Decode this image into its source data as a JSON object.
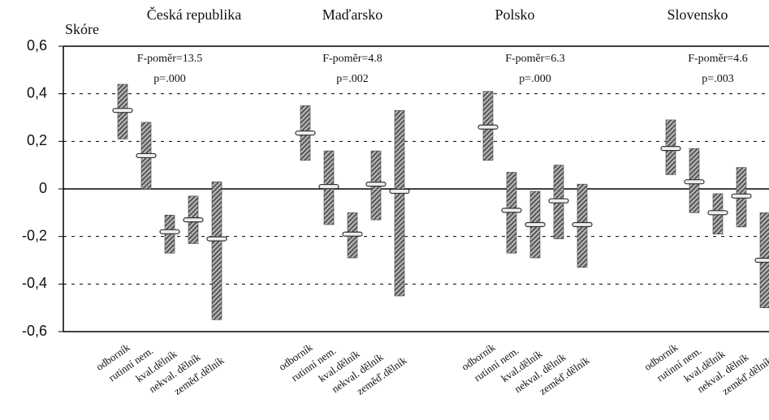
{
  "chart_data": {
    "type": "errorbar",
    "ylabel": "Skóre",
    "ylim": [
      -0.6,
      0.6
    ],
    "yticks": [
      {
        "value": 0.6,
        "label": "0,6"
      },
      {
        "value": 0.4,
        "label": "0,4"
      },
      {
        "value": 0.2,
        "label": "0,2"
      },
      0,
      {
        "value": -0.2,
        "label": "-0,2"
      },
      {
        "value": -0.4,
        "label": "-0,4"
      },
      {
        "value": -0.6,
        "label": "-0,6"
      }
    ],
    "grid": true,
    "categories": [
      "odborník",
      "rutinní nem.",
      "kval.dělník",
      "nekval. dělník",
      "zeměď.dělník"
    ],
    "series": [
      {
        "name": "Česká republika",
        "f_label": "F-poměr=13.5",
        "p_label": "p=.000",
        "values": [
          0.33,
          0.14,
          -0.18,
          -0.13,
          -0.21
        ],
        "low": [
          0.21,
          0,
          -0.27,
          -0.23,
          -0.55
        ],
        "high": [
          0.44,
          0.28,
          -0.11,
          -0.03,
          0.03
        ]
      },
      {
        "name": "Maďarsko",
        "f_label": "F-poměr=4.8",
        "p_label": "p=.002",
        "values": [
          0.235,
          0.01,
          -0.19,
          0.02,
          -0.01
        ],
        "low": [
          0.12,
          -0.15,
          -0.29,
          -0.13,
          -0.45
        ],
        "high": [
          0.35,
          0.16,
          -0.1,
          0.16,
          0.33
        ]
      },
      {
        "name": "Polsko",
        "f_label": "F-poměr=6.3",
        "p_label": "p=.000",
        "values": [
          0.26,
          -0.09,
          -0.15,
          -0.05,
          -0.15
        ],
        "low": [
          0.12,
          -0.27,
          -0.29,
          -0.21,
          -0.33
        ],
        "high": [
          0.41,
          0.07,
          -0.01,
          0.1,
          0.02
        ]
      },
      {
        "name": "Slovensko",
        "f_label": "F-poměr=4.6",
        "p_label": "p=.003",
        "values": [
          0.17,
          0.03,
          -0.1,
          -0.03,
          -0.3
        ],
        "low": [
          0.06,
          -0.1,
          -0.19,
          -0.16,
          -0.5
        ],
        "high": [
          0.29,
          0.17,
          -0.02,
          0.09,
          -0.1
        ]
      }
    ]
  }
}
